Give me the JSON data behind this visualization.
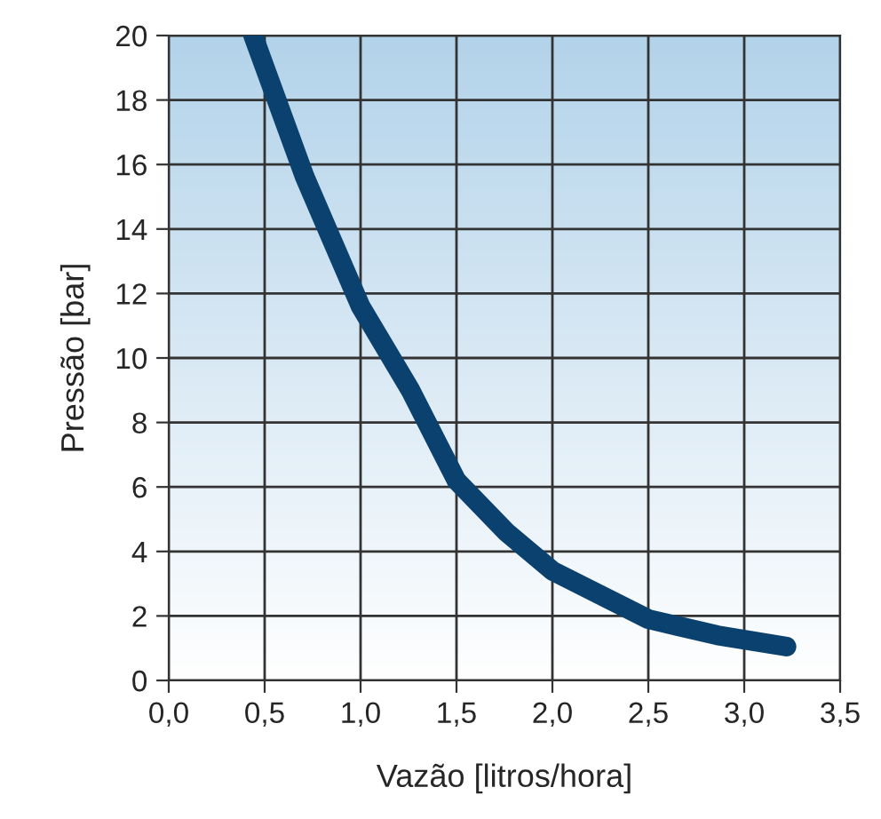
{
  "chart_data": {
    "type": "line",
    "xlabel": "Vazão [litros/hora]",
    "ylabel": "Pressão [bar]",
    "series": [
      {
        "color": "#0b416e",
        "x": [
          0.44,
          0.71,
          1.0,
          1.26,
          1.5,
          1.76,
          2.0,
          2.5,
          2.86,
          3.22
        ],
        "values": [
          20,
          15.6,
          11.6,
          9.0,
          6.2,
          4.6,
          3.4,
          1.9,
          1.4,
          1.05
        ]
      }
    ],
    "xlim": [
      0,
      3.5
    ],
    "xticks": [
      {
        "value": 0,
        "label": "0,0"
      },
      {
        "value": 0.5,
        "label": "0,5"
      },
      {
        "value": 1.0,
        "label": "1,0"
      },
      {
        "value": 1.5,
        "label": "1,5"
      },
      {
        "value": 2.0,
        "label": "2,0"
      },
      {
        "value": 2.5,
        "label": "2,5"
      },
      {
        "value": 3.0,
        "label": "3,0"
      },
      {
        "value": 3.5,
        "label": "3,5"
      }
    ],
    "ylim": [
      0,
      20
    ],
    "yticks": [
      0,
      2,
      4,
      6,
      8,
      10,
      12,
      14,
      16,
      18,
      20
    ],
    "grid": true,
    "marker": "none",
    "line_style": "solid"
  }
}
